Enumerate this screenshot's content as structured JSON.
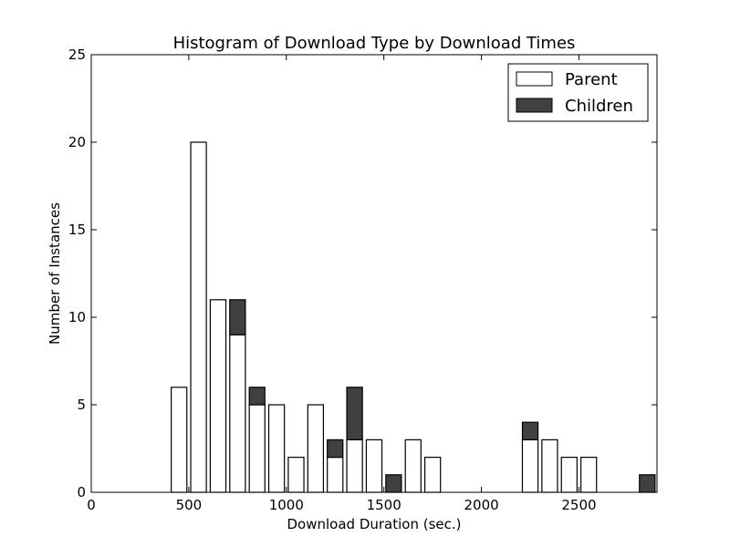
{
  "chart_data": {
    "type": "bar",
    "stacked": true,
    "title": "Histogram of Download Type by Download Times",
    "xlabel": "Download Duration (sec.)",
    "ylabel": "Number of Instances",
    "xlim": [
      0,
      2900
    ],
    "ylim": [
      0,
      25
    ],
    "xticks": [
      0,
      500,
      1000,
      1500,
      2000,
      2500
    ],
    "yticks": [
      0,
      5,
      10,
      15,
      20,
      25
    ],
    "bin_width": 100,
    "bin_starts": [
      400,
      500,
      600,
      700,
      800,
      900,
      1000,
      1100,
      1200,
      1300,
      1400,
      1500,
      1600,
      1700,
      1800,
      1900,
      2000,
      2100,
      2200,
      2300,
      2400,
      2500,
      2600,
      2700,
      2800
    ],
    "series": [
      {
        "name": "Parent",
        "color": "#ffffff",
        "values": [
          6,
          20,
          11,
          9,
          5,
          5,
          2,
          5,
          2,
          3,
          3,
          0,
          3,
          2,
          0,
          0,
          0,
          0,
          3,
          3,
          2,
          2,
          0,
          0,
          0
        ]
      },
      {
        "name": "Children",
        "color": "#404040",
        "values": [
          0,
          0,
          0,
          2,
          1,
          0,
          0,
          0,
          1,
          3,
          0,
          1,
          0,
          0,
          0,
          0,
          0,
          0,
          1,
          0,
          0,
          0,
          0,
          0,
          1
        ]
      }
    ],
    "legend_position": "top-right",
    "grid": false
  }
}
